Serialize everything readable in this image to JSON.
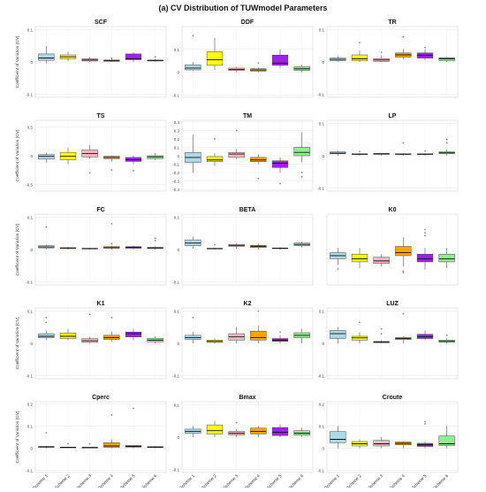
{
  "title": "(a) CV Distribution of TUWmodel Parameters",
  "ylabel": "Coefficient of Variation (CV)",
  "schemes": [
    "Scheme 1",
    "Scheme 2",
    "Scheme 3",
    "Scheme 4",
    "Scheme 5",
    "Scheme 6"
  ],
  "colors": [
    "#add8e6",
    "#ffff00",
    "#ffb6c1",
    "#ffa500",
    "#a020f0",
    "#90ee90"
  ],
  "chart_data": [
    {
      "type": "box",
      "title": "SCF",
      "ylim": [
        -0.11,
        0.11
      ],
      "ticks": [
        -0.1,
        0,
        0.1
      ],
      "tick_labels": [
        "-0.1",
        "0",
        "0.1"
      ],
      "boxes": [
        [
          -0.005,
          0.005,
          0.012,
          0.025,
          0.05
        ],
        [
          0.003,
          0.01,
          0.016,
          0.022,
          0.032
        ],
        [
          0.0,
          0.003,
          0.006,
          0.01,
          0.015
        ],
        [
          0.0,
          0.002,
          0.004,
          0.006,
          0.01
        ],
        [
          0.0,
          0.007,
          0.01,
          0.025,
          0.03
        ],
        [
          0.0,
          0.003,
          0.004,
          0.006,
          0.01
        ]
      ],
      "outliers": [
        [],
        [],
        [],
        [
          0.012
        ],
        [],
        [
          0.016
        ]
      ]
    },
    {
      "type": "box",
      "title": "DDF",
      "ylim": [
        -0.11,
        0.2
      ],
      "ticks": [
        -0.1,
        0,
        0.1
      ],
      "tick_labels": [
        "-0.1",
        "0",
        "0.1"
      ],
      "boxes": [
        [
          0.005,
          0.01,
          0.018,
          0.032,
          0.045
        ],
        [
          0.01,
          0.03,
          0.055,
          0.09,
          0.15
        ],
        [
          0.0,
          0.008,
          0.012,
          0.018,
          0.022
        ],
        [
          0.0,
          0.005,
          0.01,
          0.015,
          0.02
        ],
        [
          0.02,
          0.03,
          0.04,
          0.075,
          0.1
        ],
        [
          0.0,
          0.008,
          0.015,
          0.025,
          0.032
        ]
      ],
      "outliers": [
        [
          0.16
        ],
        [],
        [],
        [
          0.04
        ],
        [],
        []
      ]
    },
    {
      "type": "box",
      "title": "TR",
      "ylim": [
        -0.11,
        0.11
      ],
      "ticks": [
        -0.1,
        0,
        0.1
      ],
      "tick_labels": [
        "-0.1",
        "0",
        "0.1"
      ],
      "boxes": [
        [
          0.0,
          0.004,
          0.008,
          0.012,
          0.018
        ],
        [
          0.0,
          0.004,
          0.01,
          0.022,
          0.035
        ],
        [
          0.0,
          0.002,
          0.006,
          0.01,
          0.02
        ],
        [
          0.008,
          0.015,
          0.022,
          0.028,
          0.04
        ],
        [
          0.005,
          0.012,
          0.02,
          0.028,
          0.04
        ],
        [
          0.0,
          0.004,
          0.01,
          0.013,
          0.016
        ]
      ],
      "outliers": [
        [],
        [
          0.06
        ],
        [
          0.03
        ],
        [
          0.078
        ],
        [
          0.045
        ],
        []
      ]
    },
    {
      "type": "box",
      "title": "TS",
      "ylim": [
        -0.62,
        0.62
      ],
      "ticks": [
        -0.5,
        0,
        0.5
      ],
      "tick_labels": [
        "-0.5",
        "0",
        "0.5"
      ],
      "boxes": [
        [
          -0.12,
          -0.06,
          -0.01,
          0.02,
          0.05
        ],
        [
          -0.15,
          -0.07,
          -0.01,
          0.06,
          0.14
        ],
        [
          -0.05,
          -0.02,
          0.04,
          0.1,
          0.18
        ],
        [
          -0.1,
          -0.05,
          -0.03,
          -0.01,
          0.0
        ],
        [
          -0.15,
          -0.1,
          -0.07,
          -0.03,
          0.0
        ],
        [
          -0.08,
          -0.05,
          -0.02,
          0.0,
          0.05
        ]
      ],
      "outliers": [
        [],
        [],
        [
          -0.3
        ],
        [
          -0.25
        ],
        [
          -0.26
        ],
        []
      ]
    },
    {
      "type": "box",
      "title": "TM",
      "ylim": [
        -0.42,
        0.42
      ],
      "ticks": [
        -0.4,
        -0.3,
        -0.2,
        -0.1,
        0,
        0.1,
        0.2,
        0.3,
        0.4
      ],
      "tick_labels": [
        "-0.4",
        "-0.3",
        "-0.2",
        "-0.1",
        "0",
        "0.1",
        "0.2",
        "0.3",
        "0.4"
      ],
      "boxes": [
        [
          -0.2,
          -0.08,
          -0.02,
          0.04,
          0.25
        ],
        [
          -0.12,
          -0.07,
          -0.05,
          -0.01,
          0.03
        ],
        [
          -0.04,
          -0.02,
          0.02,
          0.04,
          0.08
        ],
        [
          -0.1,
          -0.07,
          -0.05,
          -0.02,
          0.02
        ],
        [
          -0.2,
          -0.14,
          -0.09,
          -0.06,
          -0.02
        ],
        [
          -0.08,
          0.0,
          0.04,
          0.1,
          0.28
        ]
      ],
      "outliers": [
        [],
        [
          0.2
        ],
        [
          0.3
        ],
        [
          -0.27
        ],
        [
          -0.33
        ],
        [
          -0.2,
          -0.25
        ]
      ]
    },
    {
      "type": "box",
      "title": "LP",
      "ylim": [
        -0.11,
        0.11
      ],
      "ticks": [
        -0.1,
        0,
        0.1
      ],
      "tick_labels": [
        "-0.1",
        "0",
        "0.1"
      ],
      "boxes": [
        [
          0.0,
          0.006,
          0.008,
          0.012,
          0.015
        ],
        [
          0.0,
          0.004,
          0.005,
          0.006,
          0.008
        ],
        [
          0.0,
          0.004,
          0.006,
          0.007,
          0.008
        ],
        [
          0.0,
          0.004,
          0.005,
          0.006,
          0.008
        ],
        [
          0.0,
          0.004,
          0.005,
          0.006,
          0.008
        ],
        [
          0.0,
          0.006,
          0.009,
          0.012,
          0.02
        ]
      ],
      "outliers": [
        [],
        [
          0.013
        ],
        [],
        [
          0.04
        ],
        [
          0.015
        ],
        [
          0.05,
          0.04
        ]
      ]
    },
    {
      "type": "box",
      "title": "FC",
      "ylim": [
        -0.11,
        0.11
      ],
      "ticks": [
        -0.1,
        0,
        0.1
      ],
      "tick_labels": [
        "-0.1",
        "0",
        "0.1"
      ],
      "boxes": [
        [
          0.0,
          0.005,
          0.008,
          0.012,
          0.015
        ],
        [
          0.0,
          0.003,
          0.004,
          0.006,
          0.008
        ],
        [
          0.0,
          0.002,
          0.003,
          0.004,
          0.005
        ],
        [
          0.0,
          0.004,
          0.006,
          0.009,
          0.012
        ],
        [
          0.0,
          0.004,
          0.007,
          0.009,
          0.012
        ],
        [
          0.0,
          0.003,
          0.005,
          0.007,
          0.01
        ]
      ],
      "outliers": [
        [
          0.07
        ],
        [],
        [],
        [
          0.08,
          0.018
        ],
        [],
        [
          0.035,
          0.028
        ]
      ]
    },
    {
      "type": "box",
      "title": "BETA",
      "ylim": [
        -0.11,
        0.11
      ],
      "ticks": [
        -0.1,
        0,
        0.1
      ],
      "tick_labels": [
        "-0.1",
        "0",
        "0.1"
      ],
      "boxes": [
        [
          0.003,
          0.012,
          0.02,
          0.03,
          0.04
        ],
        [
          0.0,
          0.002,
          0.003,
          0.004,
          0.006
        ],
        [
          0.003,
          0.01,
          0.013,
          0.016,
          0.02
        ],
        [
          0.0,
          0.006,
          0.01,
          0.013,
          0.018
        ],
        [
          0.0,
          0.003,
          0.004,
          0.005,
          0.007
        ],
        [
          0.005,
          0.012,
          0.016,
          0.02,
          0.025
        ]
      ],
      "outliers": [
        [],
        [
          0.015
        ],
        [],
        [],
        [],
        []
      ]
    },
    {
      "type": "box",
      "title": "K0",
      "ylim": [
        -0.02,
        0.21
      ],
      "ticks": [],
      "tick_labels": [],
      "boxes": [
        [
          0.045,
          0.065,
          0.075,
          0.085,
          0.1
        ],
        [
          0.035,
          0.055,
          0.065,
          0.08,
          0.1
        ],
        [
          0.04,
          0.05,
          0.058,
          0.07,
          0.08
        ],
        [
          0.04,
          0.075,
          0.085,
          0.105,
          0.135
        ],
        [
          0.03,
          0.055,
          0.065,
          0.08,
          0.1
        ],
        [
          0.035,
          0.055,
          0.065,
          0.08,
          0.1
        ]
      ],
      "outliers": [
        [
          0.032
        ],
        [],
        [],
        [
          0.025,
          0.02
        ],
        [
          0.15,
          0.14,
          0.16
        ],
        []
      ]
    },
    {
      "type": "box",
      "title": "K1",
      "ylim": [
        -0.11,
        0.11
      ],
      "ticks": [
        -0.1,
        0,
        0.1
      ],
      "tick_labels": [
        "-0.1",
        "0",
        "0.1"
      ],
      "boxes": [
        [
          0.01,
          0.017,
          0.022,
          0.03,
          0.04
        ],
        [
          0.01,
          0.015,
          0.022,
          0.032,
          0.045
        ],
        [
          0.0,
          0.003,
          0.008,
          0.015,
          0.02
        ],
        [
          0.005,
          0.012,
          0.018,
          0.025,
          0.035
        ],
        [
          0.01,
          0.02,
          0.03,
          0.035,
          0.045
        ],
        [
          0.0,
          0.005,
          0.01,
          0.016,
          0.022
        ]
      ],
      "outliers": [
        [
          0.08,
          0.065
        ],
        [],
        [
          0.09
        ],
        [
          0.08
        ],
        [],
        []
      ]
    },
    {
      "type": "box",
      "title": "K2",
      "ylim": [
        -0.11,
        0.11
      ],
      "ticks": [
        -0.1,
        0,
        0.1
      ],
      "tick_labels": [
        "-0.1",
        "0",
        "0.1"
      ],
      "boxes": [
        [
          0.0,
          0.012,
          0.018,
          0.025,
          0.035
        ],
        [
          0.0,
          0.003,
          0.006,
          0.01,
          0.015
        ],
        [
          0.0,
          0.01,
          0.02,
          0.03,
          0.05
        ],
        [
          0.0,
          0.01,
          0.018,
          0.038,
          0.055
        ],
        [
          0.0,
          0.006,
          0.01,
          0.015,
          0.025
        ],
        [
          0.0,
          0.017,
          0.025,
          0.033,
          0.045
        ]
      ],
      "outliers": [
        [
          0.08
        ],
        [],
        [],
        [
          0.1
        ],
        [
          0.035
        ],
        []
      ]
    },
    {
      "type": "box",
      "title": "LUZ",
      "ylim": [
        -0.11,
        0.11
      ],
      "ticks": [
        -0.1,
        0,
        0.1
      ],
      "tick_labels": [
        "-0.1",
        "0",
        "0.1"
      ],
      "boxes": [
        [
          0.0,
          0.015,
          0.03,
          0.04,
          0.05
        ],
        [
          0.0,
          0.01,
          0.017,
          0.022,
          0.035
        ],
        [
          0.0,
          0.002,
          0.004,
          0.006,
          0.01
        ],
        [
          0.0,
          0.012,
          0.015,
          0.018,
          0.022
        ],
        [
          0.01,
          0.015,
          0.02,
          0.028,
          0.04
        ],
        [
          0.0,
          0.004,
          0.006,
          0.01,
          0.015
        ]
      ],
      "outliers": [
        [],
        [
          0.065
        ],
        [
          0.045,
          0.03
        ],
        [
          0.092
        ],
        [],
        [
          0.025
        ]
      ]
    },
    {
      "type": "box",
      "title": "Cperc",
      "ylim": [
        -0.11,
        0.21
      ],
      "ticks": [
        -0.1,
        0,
        0.1,
        0.2
      ],
      "tick_labels": [
        "-0.1",
        "0",
        "0.1",
        "0.2"
      ],
      "boxes": [
        [
          0.0,
          0.004,
          0.006,
          0.008,
          0.01
        ],
        [
          0.0,
          0.003,
          0.004,
          0.005,
          0.006
        ],
        [
          0.0,
          0.002,
          0.003,
          0.004,
          0.005
        ],
        [
          0.0,
          0.004,
          0.01,
          0.025,
          0.04
        ],
        [
          0.0,
          0.005,
          0.008,
          0.012,
          0.015
        ],
        [
          0.0,
          0.003,
          0.005,
          0.007,
          0.01
        ]
      ],
      "outliers": [
        [
          0.07
        ],
        [
          0.02
        ],
        [
          0.02
        ],
        [
          0.15
        ],
        [
          0.18
        ],
        []
      ]
    },
    {
      "type": "box",
      "title": "Bmax",
      "ylim": [
        -0.11,
        0.11
      ],
      "ticks": [
        -0.1,
        0,
        0.1
      ],
      "tick_labels": [
        "-0.1",
        "0",
        "0.1"
      ],
      "boxes": [
        [
          0.0,
          0.012,
          0.018,
          0.025,
          0.035
        ],
        [
          0.0,
          0.01,
          0.02,
          0.038,
          0.05
        ],
        [
          0.0,
          0.007,
          0.012,
          0.018,
          0.025
        ],
        [
          0.0,
          0.01,
          0.018,
          0.028,
          0.035
        ],
        [
          0.0,
          0.005,
          0.015,
          0.03,
          0.04
        ],
        [
          0.0,
          0.006,
          0.012,
          0.02,
          0.03
        ]
      ],
      "outliers": [
        [],
        [],
        [
          0.045
        ],
        [],
        [],
        []
      ]
    },
    {
      "type": "box",
      "title": "Croute",
      "ylim": [
        -0.11,
        0.21
      ],
      "ticks": [
        -0.1,
        0,
        0.1,
        0.2
      ],
      "tick_labels": [
        "-0.1",
        "0",
        "0.1",
        "0.2"
      ],
      "boxes": [
        [
          0.0,
          0.025,
          0.04,
          0.075,
          0.1
        ],
        [
          0.0,
          0.01,
          0.02,
          0.03,
          0.04
        ],
        [
          0.0,
          0.01,
          0.02,
          0.035,
          0.05
        ],
        [
          0.0,
          0.015,
          0.022,
          0.028,
          0.03
        ],
        [
          0.0,
          0.008,
          0.015,
          0.022,
          0.03
        ],
        [
          0.0,
          0.012,
          0.02,
          0.055,
          0.1
        ]
      ],
      "outliers": [
        [],
        [],
        [],
        [],
        [
          0.12,
          0.11
        ],
        []
      ]
    }
  ]
}
